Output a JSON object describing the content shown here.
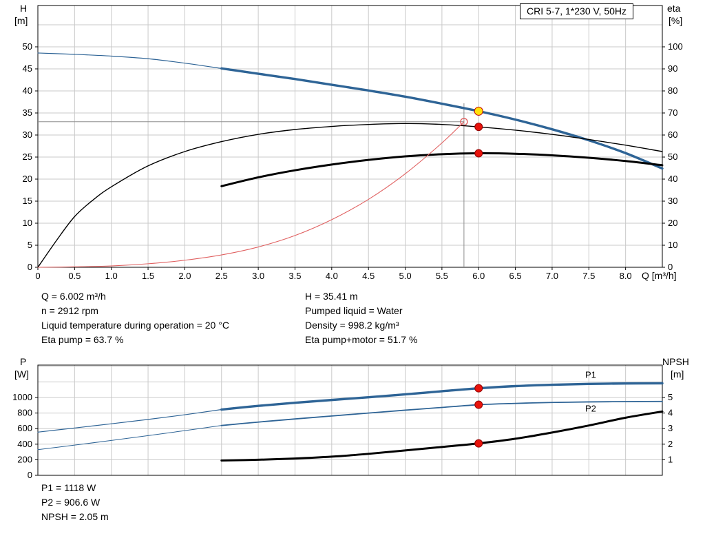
{
  "header": {
    "model_label": "CRI 5-7, 1*230 V, 50Hz"
  },
  "annotations": {
    "col1": [
      "Q = 6.002 m³/h",
      "n = 2912 rpm",
      "Liquid temperature during operation = 20 °C",
      "Eta pump = 63.7 %"
    ],
    "col2": [
      "H = 35.41 m",
      "Pumped liquid = Water",
      "Density = 998.2 kg/m³",
      "Eta pump+motor = 51.7 %"
    ],
    "footer": [
      "P1 = 1118 W",
      "P2 = 906.6 W",
      "NPSH = 2.05 m"
    ]
  },
  "colors": {
    "curve_blue": "#2e6496",
    "curve_black": "#000000",
    "curve_red": "#e06060",
    "open_circle": "#e06060",
    "grid": "#c9c9c9",
    "axis": "#000000",
    "crosshair": "#8c8c8c",
    "marker_red": "#e8130c",
    "marker_red_edge": "#8f0000",
    "marker_yellow": "#ffe10a",
    "marker_yellow_edge": "#c20000"
  },
  "chart_data": [
    {
      "type": "line",
      "name": "qh-eta-chart",
      "title": "CRI 5-7, 1*230 V, 50Hz",
      "xlabel": "Q [m³/h]",
      "ylabel_left": [
        "H",
        "[m]"
      ],
      "ylabel_right": [
        "eta",
        "[%]"
      ],
      "xlim": [
        0,
        8.5
      ],
      "ylim_left": [
        0,
        59.375
      ],
      "ylim_right": [
        0,
        118.75
      ],
      "grid_x_step": 0.5,
      "grid_y_step": 5,
      "x_ticks": [
        0,
        0.5,
        1,
        1.5,
        2,
        2.5,
        3,
        3.5,
        4,
        4.5,
        5,
        5.5,
        6,
        6.5,
        7,
        7.5,
        8
      ],
      "x_tick_labels": [
        "0",
        "0.5",
        "1.0",
        "1.5",
        "2.0",
        "2.5",
        "3.0",
        "3.5",
        "4.0",
        "4.5",
        "5.0",
        "5.5",
        "6.0",
        "6.5",
        "7.0",
        "7.5",
        "8.0"
      ],
      "y_ticks_left": [
        0,
        5,
        10,
        15,
        20,
        25,
        30,
        35,
        40,
        45,
        50
      ],
      "y_ticks_right": [
        0,
        10,
        20,
        30,
        40,
        50,
        60,
        70,
        80,
        90,
        100
      ],
      "series": [
        {
          "name": "qh-curve-extrapolated",
          "axis": "left",
          "color": "curve_blue",
          "width": 1.2,
          "points": [
            [
              0,
              48.6
            ],
            [
              0.5,
              48.3
            ],
            [
              1,
              47.9
            ],
            [
              1.5,
              47.3
            ],
            [
              2,
              46.3
            ],
            [
              2.5,
              45.1
            ]
          ]
        },
        {
          "name": "qh-curve",
          "axis": "left",
          "color": "curve_blue",
          "width": 3.4,
          "points": [
            [
              2.5,
              45.1
            ],
            [
              3,
              43.9
            ],
            [
              3.5,
              42.7
            ],
            [
              4,
              41.4
            ],
            [
              4.5,
              40.1
            ],
            [
              5,
              38.7
            ],
            [
              5.5,
              37.1
            ],
            [
              6,
              35.41
            ],
            [
              6.5,
              33.5
            ],
            [
              7,
              31.3
            ],
            [
              7.5,
              28.8
            ],
            [
              8,
              25.9
            ],
            [
              8.5,
              22.4
            ]
          ]
        },
        {
          "name": "eta-pump-curve",
          "axis": "right",
          "color": "curve_black",
          "width": 1.4,
          "points": [
            [
              0,
              0
            ],
            [
              0.25,
              12
            ],
            [
              0.5,
              23
            ],
            [
              0.75,
              30.5
            ],
            [
              1,
              36.5
            ],
            [
              1.5,
              46
            ],
            [
              2,
              52.5
            ],
            [
              2.5,
              57
            ],
            [
              3,
              60.3
            ],
            [
              3.5,
              62.5
            ],
            [
              4,
              63.9
            ],
            [
              4.5,
              64.8
            ],
            [
              5,
              65.2
            ],
            [
              5.5,
              64.8
            ],
            [
              6,
              63.7
            ],
            [
              6.5,
              62.2
            ],
            [
              7,
              60.3
            ],
            [
              7.5,
              58.0
            ],
            [
              8,
              55.4
            ],
            [
              8.5,
              52.5
            ]
          ]
        },
        {
          "name": "eta-pump-motor-curve",
          "axis": "right",
          "color": "curve_black",
          "width": 3.0,
          "points": [
            [
              2.5,
              36.8
            ],
            [
              3,
              40.8
            ],
            [
              3.5,
              44.0
            ],
            [
              4,
              46.6
            ],
            [
              4.5,
              48.7
            ],
            [
              5,
              50.3
            ],
            [
              5.5,
              51.3
            ],
            [
              6,
              51.7
            ],
            [
              6.5,
              51.5
            ],
            [
              7,
              50.8
            ],
            [
              7.5,
              49.7
            ],
            [
              8,
              48.2
            ],
            [
              8.5,
              46.3
            ]
          ]
        },
        {
          "name": "system-curve",
          "axis": "left",
          "color": "curve_red",
          "width": 1.1,
          "points": [
            [
              0,
              0
            ],
            [
              0.5,
              0.1
            ],
            [
              1,
              0.3
            ],
            [
              1.5,
              0.8
            ],
            [
              2,
              1.6
            ],
            [
              2.5,
              2.8
            ],
            [
              3,
              4.6
            ],
            [
              3.5,
              7.2
            ],
            [
              4,
              10.8
            ],
            [
              4.5,
              15.4
            ],
            [
              5,
              21.2
            ],
            [
              5.5,
              28.2
            ],
            [
              5.8,
              33
            ]
          ]
        }
      ],
      "crosshair": {
        "x": 5.8,
        "y": 33,
        "vline_top": 37.2
      },
      "markers": [
        {
          "name": "duty-point",
          "x": 6.0,
          "y": 35.41,
          "axis": "left",
          "r": 6,
          "fill": "marker_yellow",
          "stroke": "marker_yellow_edge"
        },
        {
          "name": "eta-pump-point",
          "x": 6.0,
          "y": 63.7,
          "axis": "right",
          "r": 5.5,
          "fill": "marker_red",
          "stroke": "marker_red_edge"
        },
        {
          "name": "eta-pump-motor-point",
          "x": 6.0,
          "y": 51.7,
          "axis": "right",
          "r": 5.5,
          "fill": "marker_red",
          "stroke": "marker_red_edge"
        }
      ],
      "series_labels": []
    },
    {
      "type": "line",
      "name": "power-npsh-chart",
      "xlabel": "",
      "ylabel_left": [
        "P",
        "[W]"
      ],
      "ylabel_right": [
        "NPSH",
        "[m]"
      ],
      "xlim": [
        0,
        8.5
      ],
      "ylim_left": [
        0,
        1416
      ],
      "ylim_right": [
        0,
        7.08
      ],
      "grid_x_step": 0.5,
      "grid_y_step": 200,
      "x_ticks": [],
      "x_tick_labels": [],
      "y_ticks_left": [
        0,
        200,
        400,
        600,
        800,
        1000
      ],
      "y_ticks_right": [
        1,
        2,
        3,
        4,
        5
      ],
      "series": [
        {
          "name": "p1-curve-extrapolated",
          "axis": "left",
          "color": "curve_blue",
          "width": 1.2,
          "points": [
            [
              0,
              555
            ],
            [
              0.5,
              608
            ],
            [
              1,
              662
            ],
            [
              1.5,
              718
            ],
            [
              2,
              778
            ],
            [
              2.5,
              845
            ]
          ]
        },
        {
          "name": "p1-curve",
          "axis": "left",
          "color": "curve_blue",
          "width": 3.4,
          "points": [
            [
              2.5,
              845
            ],
            [
              3,
              892
            ],
            [
              3.5,
              932
            ],
            [
              4,
              968
            ],
            [
              4.5,
              1003
            ],
            [
              5,
              1040
            ],
            [
              5.5,
              1080
            ],
            [
              6,
              1118
            ],
            [
              6.5,
              1146
            ],
            [
              7,
              1163
            ],
            [
              7.5,
              1174
            ],
            [
              8,
              1180
            ],
            [
              8.5,
              1182
            ]
          ]
        },
        {
          "name": "p2-curve-extrapolated",
          "axis": "left",
          "color": "curve_blue",
          "width": 1.0,
          "points": [
            [
              0,
              330
            ],
            [
              0.5,
              388
            ],
            [
              1,
              448
            ],
            [
              1.5,
              510
            ],
            [
              2,
              574
            ],
            [
              2.5,
              640
            ]
          ]
        },
        {
          "name": "p2-curve",
          "axis": "left",
          "color": "curve_blue",
          "width": 1.8,
          "points": [
            [
              2.5,
              640
            ],
            [
              3,
              684
            ],
            [
              3.5,
              724
            ],
            [
              4,
              762
            ],
            [
              4.5,
              800
            ],
            [
              5,
              837
            ],
            [
              5.5,
              872
            ],
            [
              6,
              906.6
            ],
            [
              6.5,
              924
            ],
            [
              7,
              936
            ],
            [
              7.5,
              943
            ],
            [
              8,
              947
            ],
            [
              8.5,
              949
            ]
          ]
        },
        {
          "name": "npsh-curve",
          "axis": "right",
          "color": "curve_black",
          "width": 3.0,
          "points": [
            [
              2.5,
              0.95
            ],
            [
              3,
              1.0
            ],
            [
              3.5,
              1.08
            ],
            [
              4,
              1.2
            ],
            [
              4.5,
              1.38
            ],
            [
              5,
              1.6
            ],
            [
              5.5,
              1.82
            ],
            [
              6,
              2.05
            ],
            [
              6.5,
              2.35
            ],
            [
              7,
              2.75
            ],
            [
              7.5,
              3.2
            ],
            [
              8,
              3.7
            ],
            [
              8.5,
              4.1
            ]
          ]
        }
      ],
      "markers": [
        {
          "name": "p1-point",
          "x": 6.0,
          "y": 1118,
          "axis": "left",
          "r": 5.5,
          "fill": "marker_red",
          "stroke": "marker_red_edge"
        },
        {
          "name": "p2-point",
          "x": 6.0,
          "y": 906.6,
          "axis": "left",
          "r": 5.5,
          "fill": "marker_red",
          "stroke": "marker_red_edge"
        },
        {
          "name": "npsh-point",
          "x": 6.0,
          "y": 2.05,
          "axis": "right",
          "r": 5.5,
          "fill": "marker_red",
          "stroke": "marker_red_edge"
        }
      ],
      "series_labels": [
        {
          "text": "P1",
          "x": 7.45,
          "y": 1253,
          "axis": "left",
          "color": "curve_blue"
        },
        {
          "text": "P2",
          "x": 7.45,
          "y": 818,
          "axis": "left",
          "color": "curve_blue"
        }
      ]
    }
  ]
}
